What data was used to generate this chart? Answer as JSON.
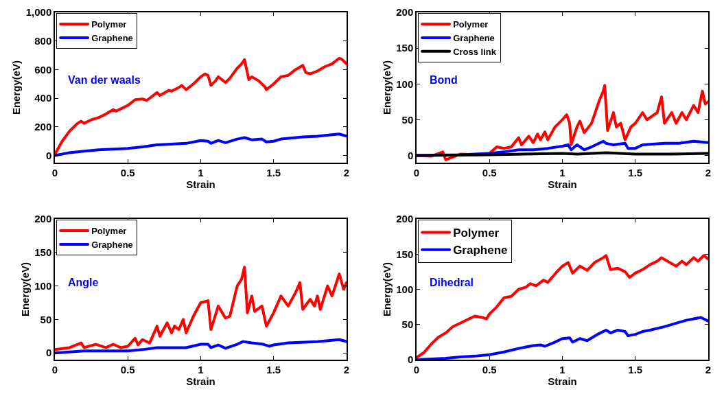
{
  "chart_data": [
    {
      "type": "line",
      "xlabel": "Strain",
      "ylabel": "Energy(eV)",
      "annotations": [
        "Van der waals"
      ],
      "xlim": [
        0,
        2
      ],
      "xticks": [
        0,
        0.5,
        1,
        1.5,
        2
      ],
      "ylim": [
        -50,
        1000
      ],
      "yticks": [
        0,
        200,
        400,
        600,
        800,
        {
          "value": 1000,
          "label": "1,000"
        }
      ],
      "grid": false,
      "legend": "top left",
      "marker": "none",
      "line_style": "solid",
      "series": [
        {
          "name": "Polymer",
          "color": "#ff0000",
          "x": [
            0,
            0.05,
            0.1,
            0.15,
            0.18,
            0.2,
            0.25,
            0.3,
            0.35,
            0.4,
            0.42,
            0.5,
            0.55,
            0.6,
            0.63,
            0.7,
            0.72,
            0.78,
            0.8,
            0.85,
            0.87,
            0.9,
            0.95,
            1.0,
            1.03,
            1.05,
            1.07,
            1.1,
            1.12,
            1.17,
            1.2,
            1.25,
            1.28,
            1.3,
            1.33,
            1.35,
            1.4,
            1.44,
            1.45,
            1.5,
            1.55,
            1.6,
            1.65,
            1.7,
            1.72,
            1.75,
            1.8,
            1.85,
            1.9,
            1.95,
            1.97,
            2.0
          ],
          "values": [
            10,
            100,
            170,
            220,
            240,
            225,
            250,
            265,
            290,
            320,
            310,
            350,
            390,
            395,
            385,
            440,
            420,
            455,
            450,
            475,
            490,
            460,
            500,
            550,
            570,
            560,
            490,
            520,
            550,
            510,
            540,
            610,
            640,
            670,
            530,
            550,
            520,
            480,
            460,
            500,
            550,
            560,
            600,
            630,
            580,
            570,
            590,
            620,
            640,
            680,
            670,
            640
          ]
        },
        {
          "name": "Graphene",
          "color": "#0000ff",
          "x": [
            0,
            0.1,
            0.2,
            0.3,
            0.4,
            0.5,
            0.6,
            0.7,
            0.8,
            0.9,
            1.0,
            1.05,
            1.07,
            1.12,
            1.17,
            1.25,
            1.3,
            1.35,
            1.42,
            1.45,
            1.5,
            1.55,
            1.7,
            1.8,
            1.9,
            1.95,
            2.0
          ],
          "values": [
            0,
            20,
            30,
            40,
            45,
            50,
            60,
            75,
            80,
            85,
            105,
            100,
            85,
            105,
            90,
            115,
            125,
            110,
            115,
            95,
            100,
            115,
            130,
            135,
            145,
            150,
            135
          ]
        }
      ]
    },
    {
      "type": "line",
      "xlabel": "Strain",
      "ylabel": "Energy(eV)",
      "annotations": [
        "Bond"
      ],
      "xlim": [
        0,
        2
      ],
      "xticks": [
        0,
        0.5,
        1,
        1.5,
        2
      ],
      "ylim": [
        -10,
        200
      ],
      "yticks": [
        0,
        50,
        100,
        150,
        200
      ],
      "grid": false,
      "legend": "top left",
      "marker": "none",
      "line_style": "solid",
      "series": [
        {
          "name": "Polymer",
          "color": "#ff0000",
          "x": [
            0,
            0.1,
            0.18,
            0.2,
            0.3,
            0.4,
            0.5,
            0.55,
            0.6,
            0.65,
            0.7,
            0.72,
            0.77,
            0.8,
            0.83,
            0.85,
            0.88,
            0.9,
            0.95,
            1.0,
            1.03,
            1.05,
            1.06,
            1.1,
            1.12,
            1.15,
            1.2,
            1.25,
            1.28,
            1.29,
            1.31,
            1.35,
            1.37,
            1.4,
            1.43,
            1.47,
            1.5,
            1.55,
            1.58,
            1.65,
            1.68,
            1.7,
            1.75,
            1.78,
            1.82,
            1.85,
            1.9,
            1.93,
            1.96,
            1.98,
            2.0
          ],
          "values": [
            0,
            -1,
            5,
            -6,
            2,
            1,
            3,
            12,
            10,
            12,
            25,
            15,
            27,
            18,
            30,
            22,
            33,
            22,
            40,
            50,
            57,
            45,
            15,
            40,
            48,
            32,
            45,
            75,
            90,
            98,
            35,
            60,
            40,
            45,
            22,
            40,
            45,
            60,
            50,
            60,
            82,
            45,
            60,
            45,
            60,
            50,
            70,
            60,
            90,
            72,
            75
          ]
        },
        {
          "name": "Graphene",
          "color": "#0000ff",
          "x": [
            0,
            0.3,
            0.5,
            0.6,
            0.7,
            0.8,
            0.9,
            1.0,
            1.04,
            1.06,
            1.1,
            1.15,
            1.2,
            1.28,
            1.3,
            1.35,
            1.43,
            1.45,
            1.5,
            1.55,
            1.7,
            1.8,
            1.9,
            2.0
          ],
          "values": [
            0,
            1,
            3,
            5,
            8,
            8,
            10,
            13,
            15,
            8,
            15,
            8,
            12,
            20,
            17,
            15,
            17,
            10,
            10,
            15,
            17,
            17,
            20,
            18
          ]
        },
        {
          "name": "Cross link",
          "color": "#000000",
          "x": [
            0,
            0.5,
            1.0,
            1.1,
            1.3,
            1.5,
            1.75,
            2.0
          ],
          "values": [
            0,
            1,
            3,
            2,
            4,
            2,
            2,
            3
          ]
        }
      ]
    },
    {
      "type": "line",
      "xlabel": "Strain",
      "ylabel": "Energy(eV)",
      "annotations": [
        "Angle"
      ],
      "xlim": [
        0,
        2
      ],
      "xticks": [
        0,
        0.5,
        1,
        1.5,
        2
      ],
      "ylim": [
        -10,
        200
      ],
      "yticks": [
        0,
        50,
        100,
        150,
        200
      ],
      "grid": false,
      "legend": "top left",
      "marker": "none",
      "line_style": "solid",
      "series": [
        {
          "name": "Polymer",
          "color": "#ff0000",
          "x": [
            0,
            0.1,
            0.18,
            0.2,
            0.28,
            0.35,
            0.4,
            0.45,
            0.5,
            0.55,
            0.57,
            0.6,
            0.65,
            0.7,
            0.72,
            0.77,
            0.8,
            0.82,
            0.85,
            0.88,
            0.9,
            0.95,
            1.0,
            1.05,
            1.07,
            1.12,
            1.17,
            1.2,
            1.25,
            1.28,
            1.3,
            1.32,
            1.35,
            1.37,
            1.42,
            1.45,
            1.5,
            1.55,
            1.6,
            1.65,
            1.68,
            1.7,
            1.75,
            1.78,
            1.8,
            1.82,
            1.87,
            1.9,
            1.95,
            1.98,
            2.0
          ],
          "values": [
            5,
            8,
            15,
            8,
            13,
            8,
            13,
            8,
            10,
            22,
            12,
            20,
            15,
            40,
            25,
            45,
            30,
            40,
            35,
            50,
            30,
            55,
            75,
            78,
            35,
            70,
            52,
            55,
            100,
            110,
            128,
            60,
            85,
            62,
            70,
            40,
            60,
            85,
            70,
            90,
            105,
            65,
            80,
            70,
            85,
            65,
            100,
            85,
            118,
            95,
            105
          ]
        },
        {
          "name": "Graphene",
          "color": "#0000ff",
          "x": [
            0,
            0.2,
            0.5,
            0.6,
            0.7,
            0.8,
            0.9,
            1.0,
            1.05,
            1.07,
            1.12,
            1.17,
            1.25,
            1.29,
            1.35,
            1.43,
            1.47,
            1.5,
            1.6,
            1.8,
            1.95,
            2.0
          ],
          "values": [
            0,
            3,
            3,
            5,
            8,
            8,
            8,
            13,
            13,
            8,
            12,
            7,
            13,
            17,
            15,
            13,
            10,
            12,
            15,
            17,
            20,
            17
          ]
        }
      ]
    },
    {
      "type": "line",
      "xlabel": "Strain",
      "ylabel": "Energy(eV)",
      "annotations": [
        "Dihedral"
      ],
      "xlim": [
        0,
        2
      ],
      "xticks": [
        0,
        0.5,
        1,
        1.5,
        2
      ],
      "ylim": [
        0,
        200
      ],
      "yticks": [
        0,
        50,
        100,
        150,
        200
      ],
      "grid": false,
      "legend": "top left",
      "marker": "none",
      "line_style": "solid",
      "series": [
        {
          "name": "Polymer",
          "color": "#ff0000",
          "x": [
            0,
            0.05,
            0.1,
            0.15,
            0.2,
            0.25,
            0.3,
            0.35,
            0.4,
            0.45,
            0.48,
            0.5,
            0.55,
            0.6,
            0.65,
            0.7,
            0.75,
            0.78,
            0.82,
            0.87,
            0.9,
            0.95,
            1.0,
            1.04,
            1.07,
            1.12,
            1.17,
            1.22,
            1.28,
            1.3,
            1.33,
            1.38,
            1.43,
            1.46,
            1.5,
            1.55,
            1.6,
            1.65,
            1.68,
            1.72,
            1.78,
            1.82,
            1.85,
            1.9,
            1.93,
            1.97,
            2.0
          ],
          "values": [
            3,
            10,
            22,
            32,
            38,
            47,
            52,
            57,
            62,
            60,
            58,
            65,
            75,
            88,
            90,
            100,
            103,
            108,
            105,
            113,
            110,
            122,
            133,
            138,
            123,
            133,
            127,
            138,
            145,
            148,
            128,
            130,
            125,
            117,
            123,
            128,
            135,
            140,
            145,
            140,
            133,
            140,
            135,
            145,
            140,
            148,
            143
          ]
        },
        {
          "name": "Graphene",
          "color": "#0000ff",
          "x": [
            0,
            0.2,
            0.3,
            0.4,
            0.5,
            0.6,
            0.7,
            0.8,
            0.85,
            0.88,
            0.95,
            1.0,
            1.05,
            1.07,
            1.12,
            1.17,
            1.25,
            1.3,
            1.33,
            1.38,
            1.43,
            1.45,
            1.5,
            1.55,
            1.6,
            1.7,
            1.8,
            1.85,
            1.9,
            1.95,
            2.0
          ],
          "values": [
            0,
            2,
            4,
            5,
            7,
            11,
            16,
            20,
            21,
            19,
            25,
            30,
            31,
            25,
            30,
            27,
            37,
            42,
            38,
            42,
            40,
            34,
            36,
            40,
            42,
            47,
            53,
            56,
            58,
            60,
            55
          ]
        }
      ]
    }
  ]
}
